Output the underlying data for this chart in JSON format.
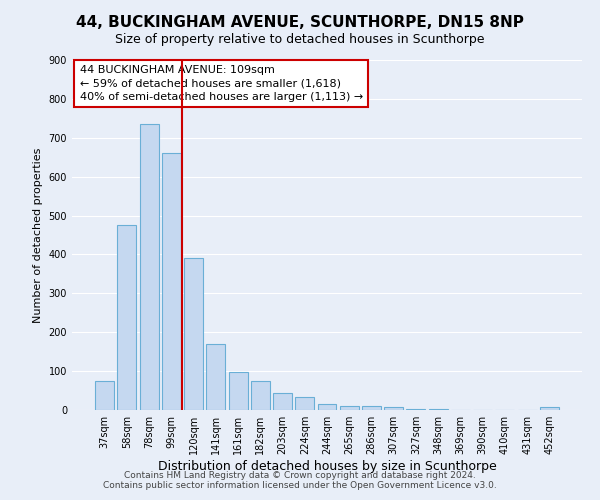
{
  "title": "44, BUCKINGHAM AVENUE, SCUNTHORPE, DN15 8NP",
  "subtitle": "Size of property relative to detached houses in Scunthorpe",
  "xlabel": "Distribution of detached houses by size in Scunthorpe",
  "ylabel": "Number of detached properties",
  "bar_labels": [
    "37sqm",
    "58sqm",
    "78sqm",
    "99sqm",
    "120sqm",
    "141sqm",
    "161sqm",
    "182sqm",
    "203sqm",
    "224sqm",
    "244sqm",
    "265sqm",
    "286sqm",
    "307sqm",
    "327sqm",
    "348sqm",
    "369sqm",
    "390sqm",
    "410sqm",
    "431sqm",
    "452sqm"
  ],
  "bar_values": [
    75,
    475,
    735,
    660,
    390,
    170,
    98,
    75,
    45,
    33,
    15,
    10,
    10,
    7,
    3,
    2,
    1,
    1,
    0,
    0,
    8
  ],
  "bar_color": "#c5d8f0",
  "bar_edge_color": "#6aafd6",
  "ylim": [
    0,
    900
  ],
  "yticks": [
    0,
    100,
    200,
    300,
    400,
    500,
    600,
    700,
    800,
    900
  ],
  "vline_x": 3.5,
  "vline_color": "#cc0000",
  "annotation_text": "44 BUCKINGHAM AVENUE: 109sqm\n← 59% of detached houses are smaller (1,618)\n40% of semi-detached houses are larger (1,113) →",
  "annotation_box_color": "#ffffff",
  "annotation_box_edge": "#cc0000",
  "footer_line1": "Contains HM Land Registry data © Crown copyright and database right 2024.",
  "footer_line2": "Contains public sector information licensed under the Open Government Licence v3.0.",
  "bg_color": "#e8eef8",
  "plot_bg_color": "#e8eef8",
  "grid_color": "#ffffff",
  "title_fontsize": 11,
  "subtitle_fontsize": 9,
  "ylabel_fontsize": 8,
  "xlabel_fontsize": 9,
  "tick_fontsize": 7,
  "annotation_fontsize": 8
}
